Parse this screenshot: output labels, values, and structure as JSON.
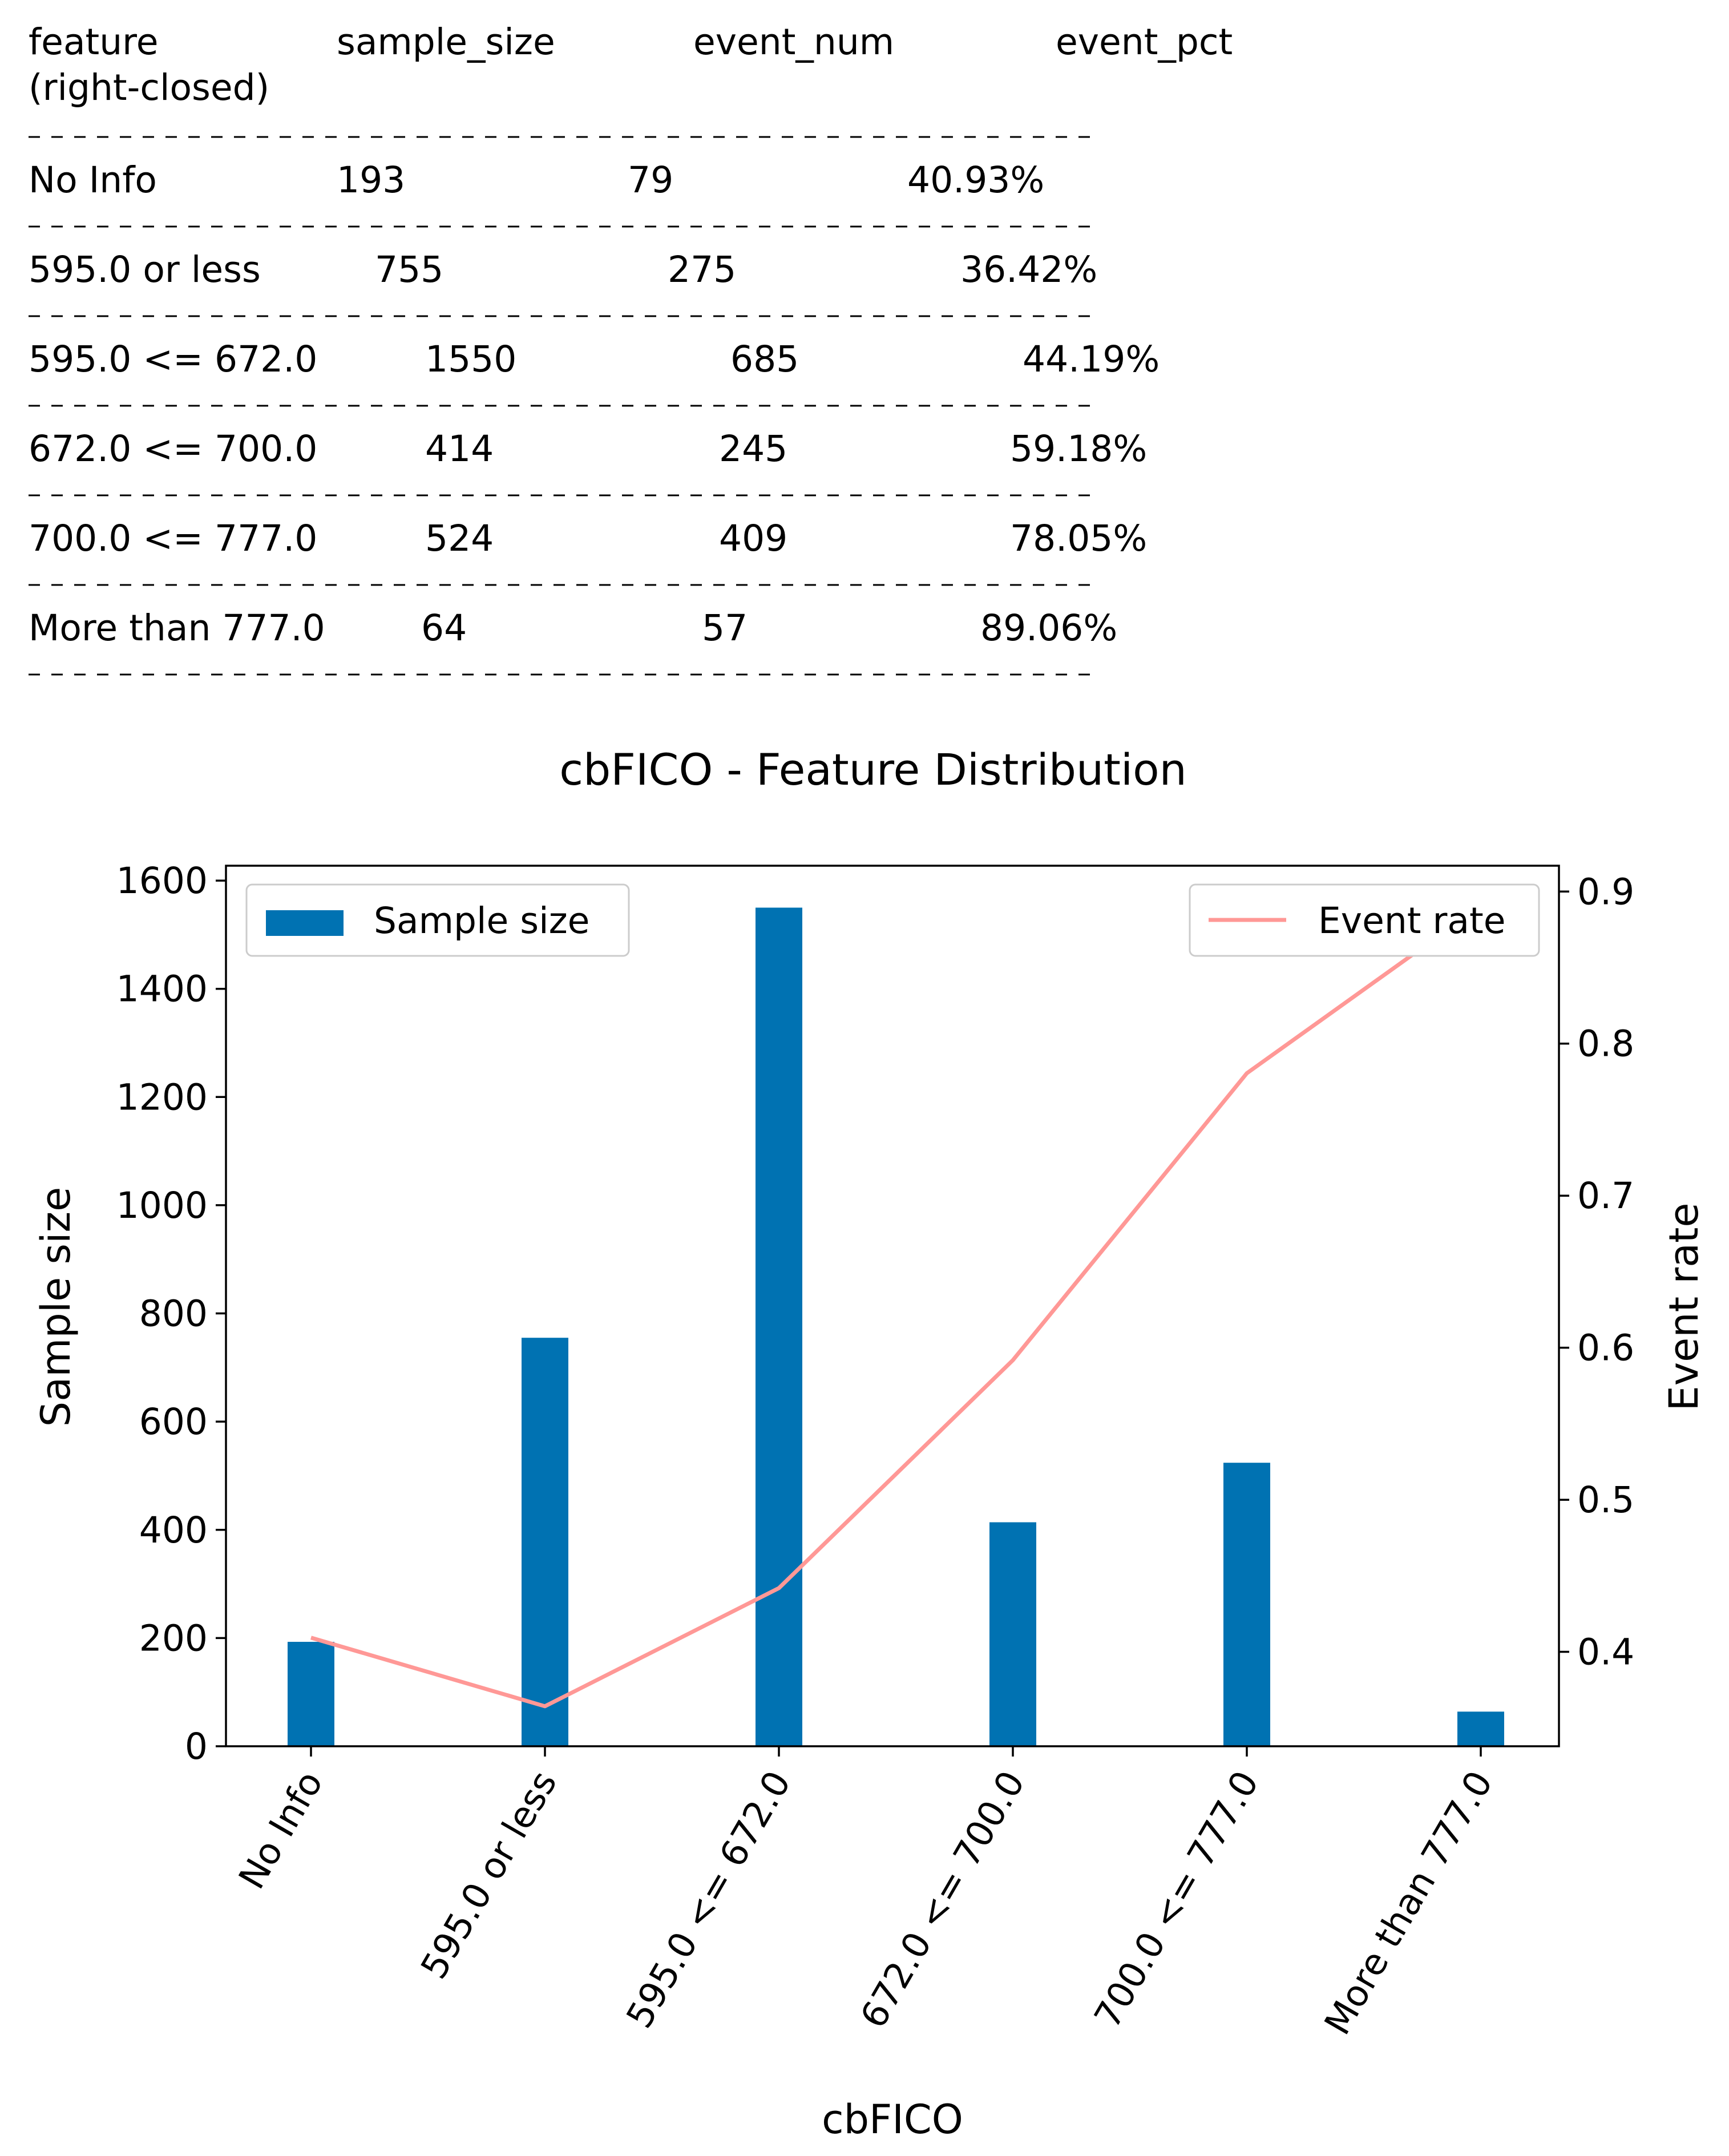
{
  "table": {
    "headers": [
      "feature",
      "sample_size",
      "event_num",
      "event_pct"
    ],
    "header_sub": "(right-closed)",
    "rows": [
      [
        "No Info",
        "193",
        "79",
        "40.93%"
      ],
      [
        "595.0 or less",
        "755",
        "275",
        "36.42%"
      ],
      [
        "595.0 <= 672.0",
        "1550",
        "685",
        "44.19%"
      ],
      [
        "672.0 <= 700.0",
        "414",
        "245",
        "59.18%"
      ],
      [
        "700.0 <= 777.0",
        "524",
        "409",
        "78.05%"
      ],
      [
        "More than 777.0",
        "64",
        "57",
        "89.06%"
      ]
    ]
  },
  "chart_data": {
    "type": "bar",
    "title": "cbFICO - Feature Distribution",
    "xlabel": "cbFICO",
    "ylabel": "Sample size",
    "ylabel_right": "Event rate",
    "categories": [
      "No Info",
      "595.0 or less",
      "595.0 <= 672.0",
      "672.0 <= 700.0",
      "700.0 <= 777.0",
      "More than 777.0"
    ],
    "series": [
      {
        "name": "Sample size",
        "type": "bar",
        "axis": "left",
        "color": "#0072b2",
        "values": [
          193,
          755,
          1550,
          414,
          524,
          64
        ]
      },
      {
        "name": "Event rate",
        "type": "line",
        "axis": "right",
        "color": "#ff9896",
        "values": [
          0.4093,
          0.3642,
          0.4419,
          0.5918,
          0.7805,
          0.8906
        ]
      }
    ],
    "ylim": [
      0,
      1627.5
    ],
    "ylim_right": [
      0.3379,
      0.917
    ],
    "yticks": [
      0,
      200,
      400,
      600,
      800,
      1000,
      1200,
      1400,
      1600
    ],
    "yticks_right": [
      0.4,
      0.5,
      0.6,
      0.7,
      0.8,
      0.9
    ],
    "legend": [
      {
        "label": "Sample size",
        "placement": "upper-left"
      },
      {
        "label": "Event rate",
        "placement": "upper-right"
      }
    ],
    "grid": false
  }
}
